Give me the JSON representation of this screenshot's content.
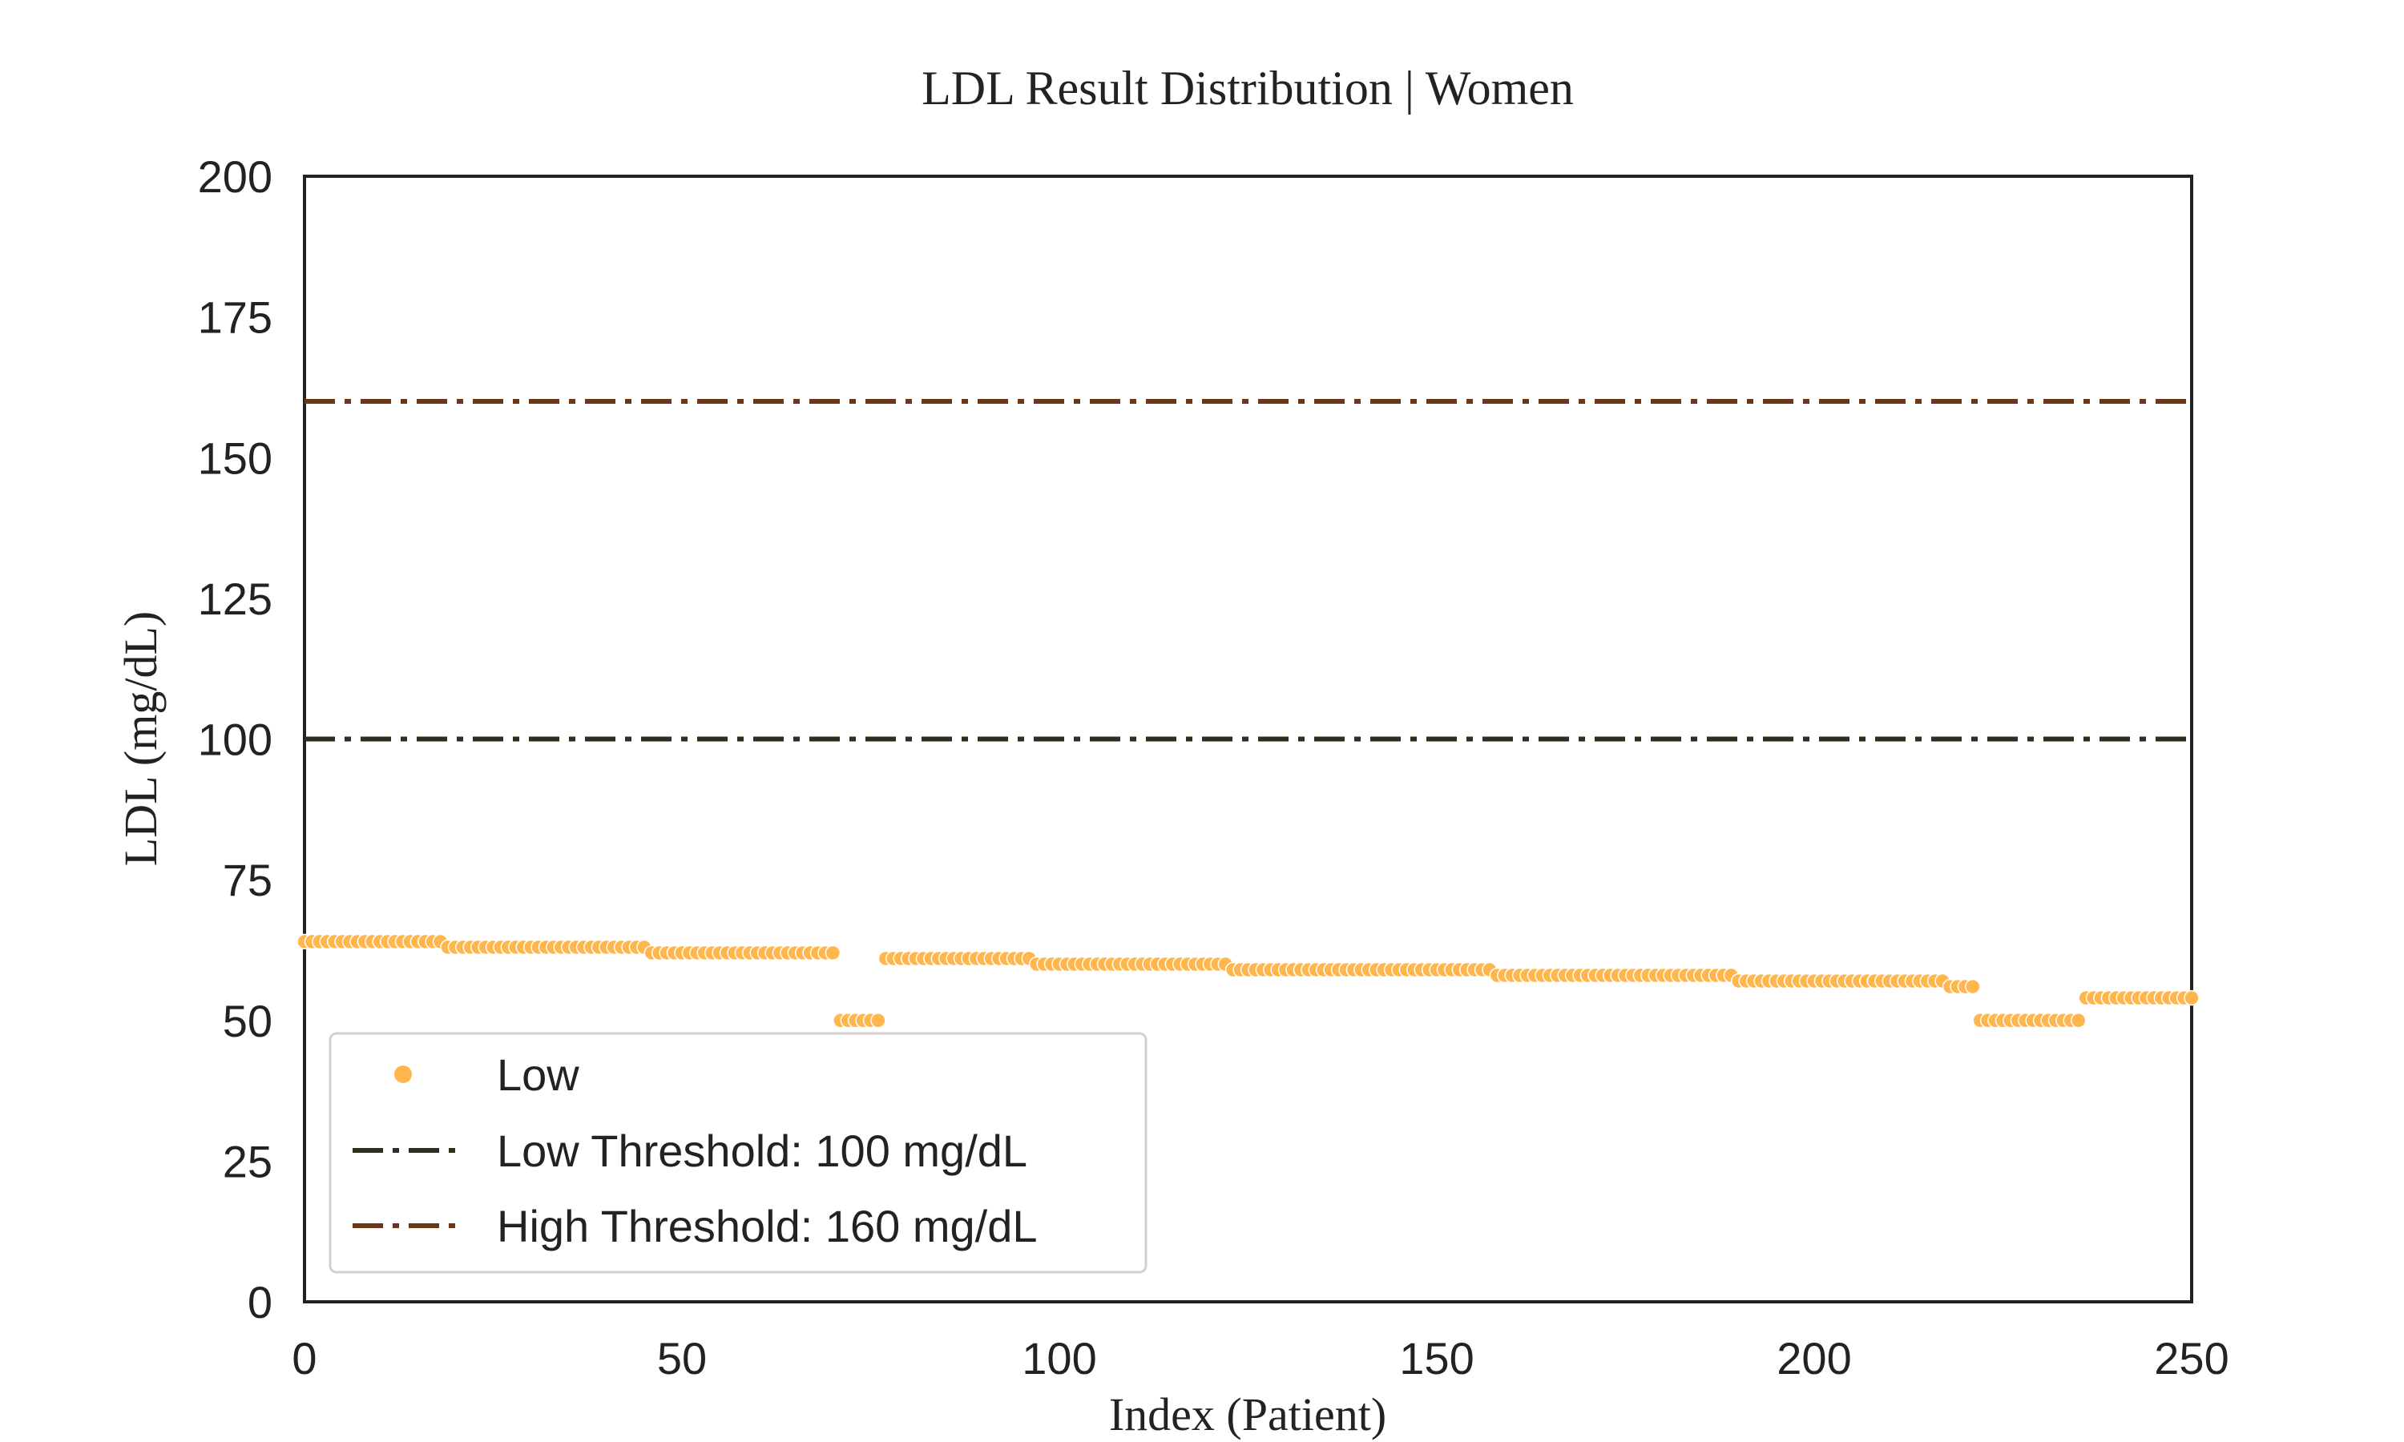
{
  "chart_data": {
    "type": "scatter",
    "title": "LDL Result Distribution | Women",
    "xlabel": "Index (Patient)",
    "ylabel": "LDL (mg/dL)",
    "xlim": [
      0,
      250
    ],
    "ylim": [
      0,
      200
    ],
    "xticks": [
      0,
      50,
      100,
      150,
      200,
      250
    ],
    "yticks": [
      0,
      25,
      50,
      75,
      100,
      125,
      150,
      175,
      200
    ],
    "grid": false,
    "legend_position": "lower-left",
    "series": [
      {
        "name": "Low",
        "kind": "points",
        "color": "#FFB74D",
        "segments": [
          {
            "x_start": 0,
            "x_end": 18,
            "y": 64
          },
          {
            "x_start": 19,
            "x_end": 45,
            "y": 63
          },
          {
            "x_start": 46,
            "x_end": 70,
            "y": 62
          },
          {
            "x_start": 71,
            "x_end": 76,
            "y": 50
          },
          {
            "x_start": 77,
            "x_end": 96,
            "y": 61
          },
          {
            "x_start": 97,
            "x_end": 122,
            "y": 60
          },
          {
            "x_start": 123,
            "x_end": 157,
            "y": 59
          },
          {
            "x_start": 158,
            "x_end": 189,
            "y": 58
          },
          {
            "x_start": 190,
            "x_end": 217,
            "y": 57
          },
          {
            "x_start": 218,
            "x_end": 221,
            "y": 56
          },
          {
            "x_start": 222,
            "x_end": 235,
            "y": 50
          },
          {
            "x_start": 236,
            "x_end": 250,
            "y": 54
          }
        ]
      },
      {
        "name": "Low Threshold: 100 mg/dL",
        "kind": "hline",
        "y": 100,
        "color": "#2B2F1E"
      },
      {
        "name": "High Threshold: 160 mg/dL",
        "kind": "hline",
        "y": 160,
        "color": "#6B3518"
      }
    ]
  }
}
